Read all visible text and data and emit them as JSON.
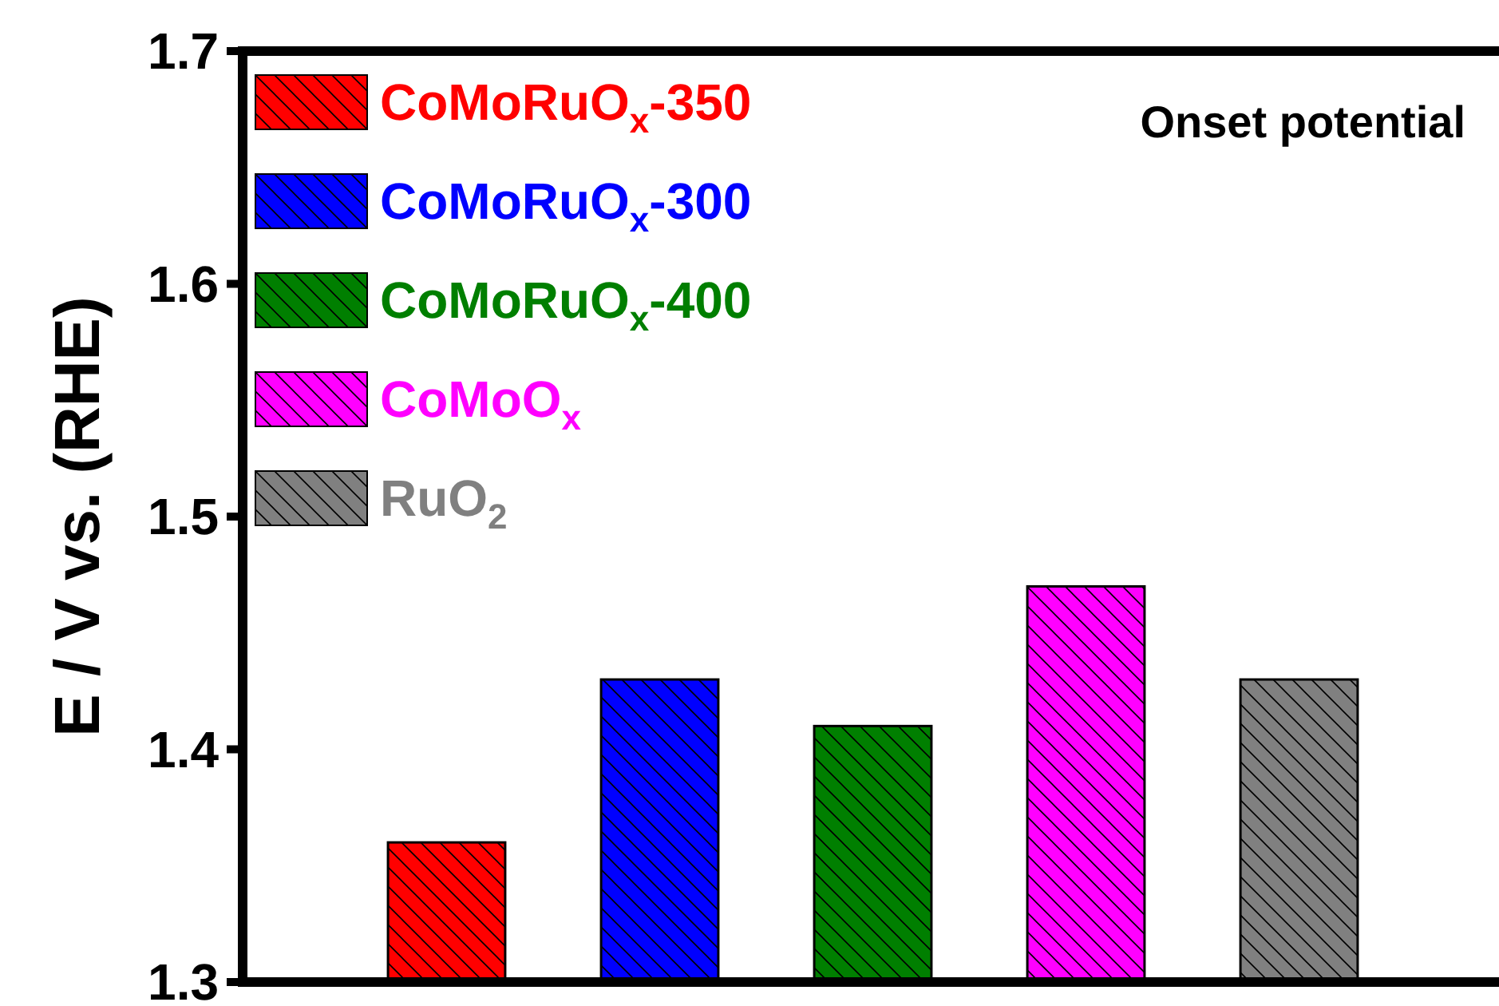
{
  "chart_data": {
    "type": "bar",
    "ylabel": "E / V vs. (RHE)",
    "categories": [
      null,
      null,
      null,
      null,
      null
    ],
    "series": [
      {
        "name": "CoMoRuO$_{x}$-350",
        "color": "#ff0000",
        "values": [
          1.36,
          null,
          null,
          null,
          null
        ]
      },
      {
        "name": "CoMoRuO$_{x}$-300",
        "color": "#0000ff",
        "values": [
          null,
          1.43,
          null,
          null,
          null
        ]
      },
      {
        "name": "CoMoRuO$_{x}$-400",
        "color": "#007f00",
        "values": [
          null,
          null,
          1.41,
          null,
          null
        ]
      },
      {
        "name": "CoMoO$_{x}$",
        "color": "#ff00ff",
        "values": [
          null,
          null,
          null,
          1.47,
          null
        ]
      },
      {
        "name": "RuO$_{2}$",
        "color": "#808080",
        "values": [
          null,
          null,
          null,
          null,
          1.43
        ]
      }
    ],
    "ylim": [
      1.3,
      1.7
    ],
    "yticks": [
      1.3,
      1.4,
      1.5,
      1.6,
      1.7
    ],
    "legend": "top left",
    "grid": false,
    "annotations": [
      "Onset potential"
    ]
  }
}
